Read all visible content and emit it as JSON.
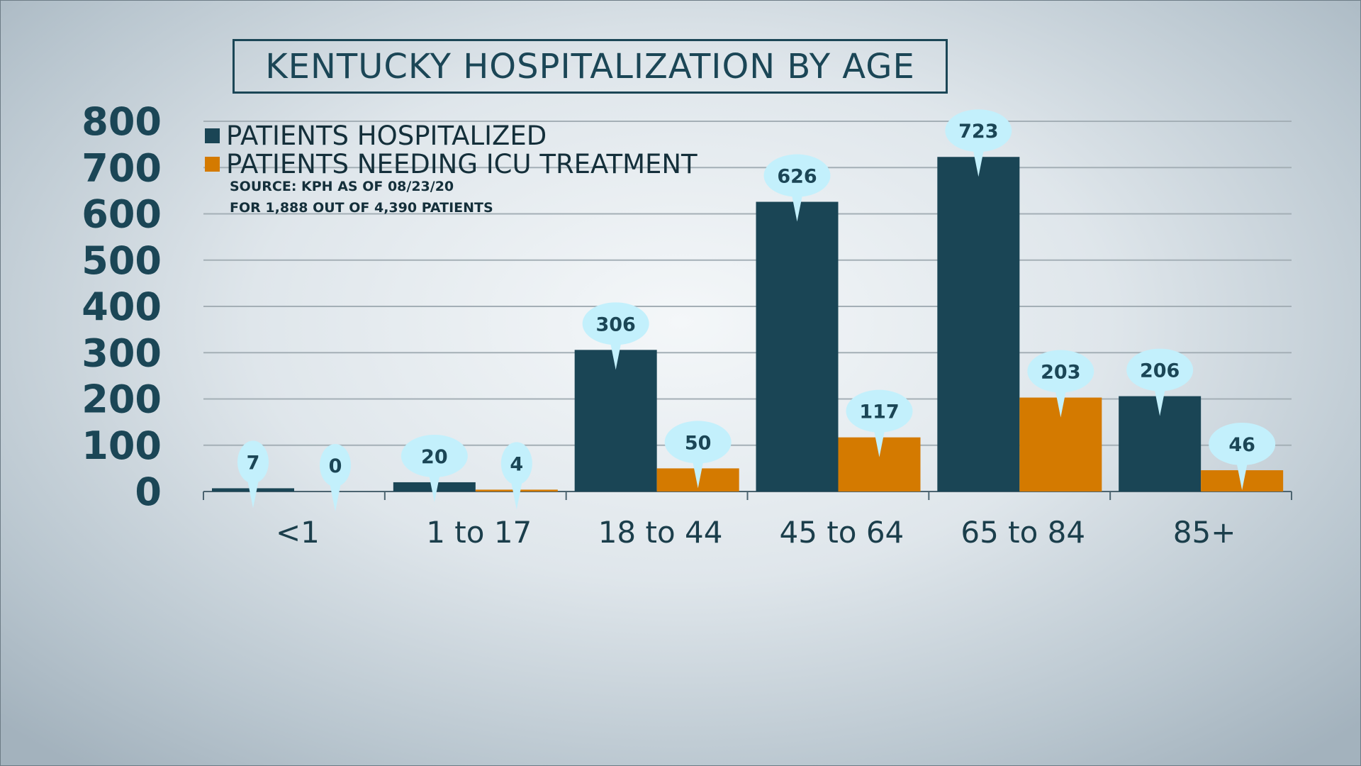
{
  "chart_data": {
    "type": "bar",
    "title": "KENTUCKY HOSPITALIZATION BY AGE",
    "categories": [
      "<1",
      "1 to 17",
      "18 to 44",
      "45 to 64",
      "65 to 84",
      "85+"
    ],
    "series": [
      {
        "name": "PATIENTS HOSPITALIZED",
        "color": "#1a4555",
        "values": [
          7,
          20,
          306,
          626,
          723,
          206
        ]
      },
      {
        "name": "PATIENTS NEEDING ICU TREATMENT",
        "color": "#d47a00",
        "values": [
          0,
          4,
          50,
          117,
          203,
          46
        ]
      }
    ],
    "source_lines": [
      "SOURCE: KPH AS OF 08/23/20",
      "FOR 1,888 OUT OF 4,390 PATIENTS"
    ],
    "yticks": [
      "0",
      "100",
      "200",
      "300",
      "400",
      "500",
      "600",
      "700",
      "800"
    ],
    "ylim": [
      0,
      800
    ],
    "xlabel": "",
    "ylabel": "",
    "grid": true,
    "legend_position": "top-left",
    "label_bubble_color": "#c3f0fc"
  }
}
